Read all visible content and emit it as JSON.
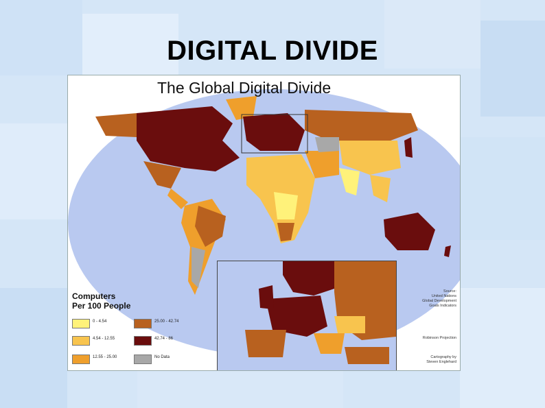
{
  "slide": {
    "title": "DIGITAL DIVIDE"
  },
  "map": {
    "title": "The Global Digital Divide",
    "legend": {
      "title_line1": "Computers",
      "title_line2": "Per 100 People",
      "items": [
        {
          "label": "0 - 4.54",
          "color": "#fff27a"
        },
        {
          "label": "4.54 - 12.55",
          "color": "#f8c44e"
        },
        {
          "label": "12.55 - 25.00",
          "color": "#ef9f2c"
        },
        {
          "label": "25.00 - 42.74",
          "color": "#b8611f"
        },
        {
          "label": "42.74 - 86",
          "color": "#6a0d0d"
        },
        {
          "label": "No Data",
          "color": "#a8a8a8"
        }
      ]
    },
    "credits": {
      "source": [
        "Source:",
        "United Nations",
        "Global Development",
        "Goals Indicators"
      ],
      "projection": "Robinson Projection",
      "cartography": [
        "Cartography by",
        "Steven Englehard"
      ]
    },
    "colors": {
      "ocean": "#b9c9f0",
      "background": "#ffffff"
    }
  }
}
